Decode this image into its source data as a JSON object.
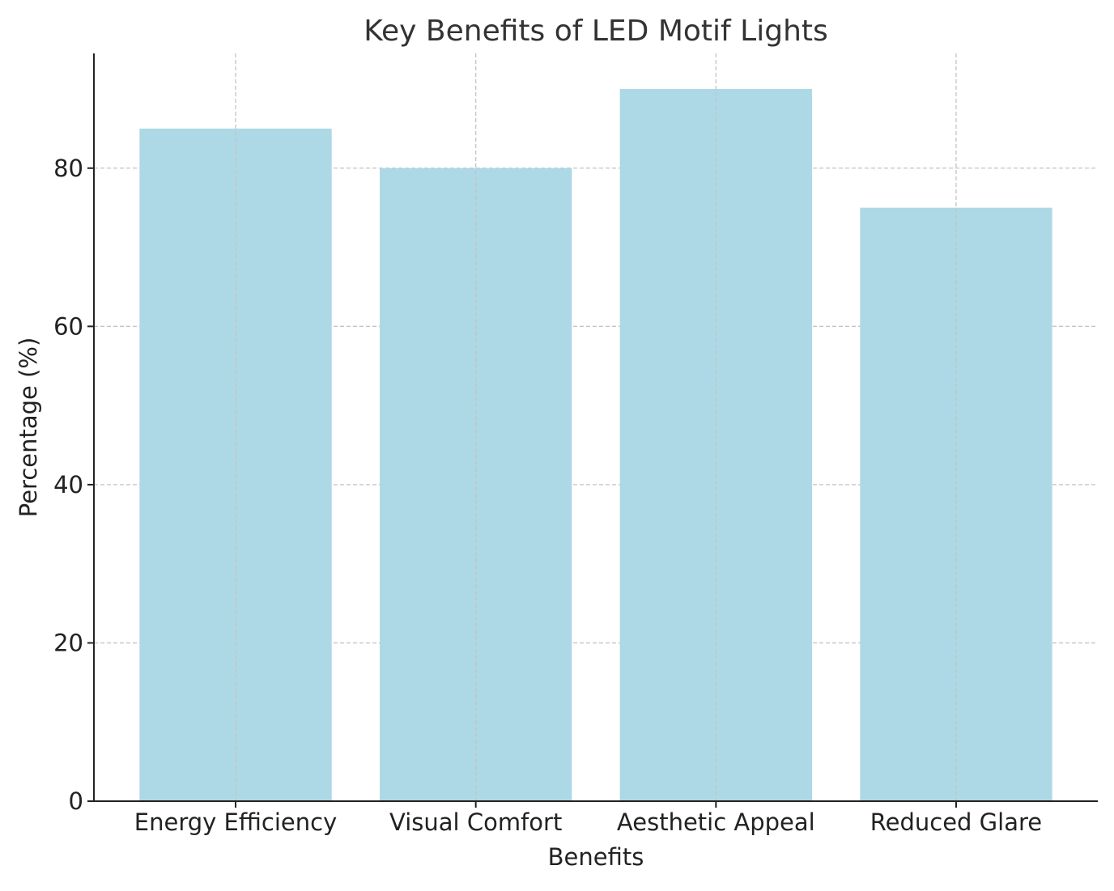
{
  "chart_data": {
    "type": "bar",
    "title": "Key Benefits of LED Motif Lights",
    "xlabel": "Benefits",
    "ylabel": "Percentage (%)",
    "categories": [
      "Energy Efficiency",
      "Visual Comfort",
      "Aesthetic Appeal",
      "Reduced Glare"
    ],
    "values": [
      85,
      80,
      90,
      75
    ],
    "ylim": [
      0,
      94.5
    ],
    "yticks": [
      0,
      20,
      40,
      60,
      80
    ],
    "ytick_labels": [
      "0",
      "20",
      "40",
      "60",
      "80"
    ],
    "grid": true,
    "bar_color": "#add8e6"
  }
}
